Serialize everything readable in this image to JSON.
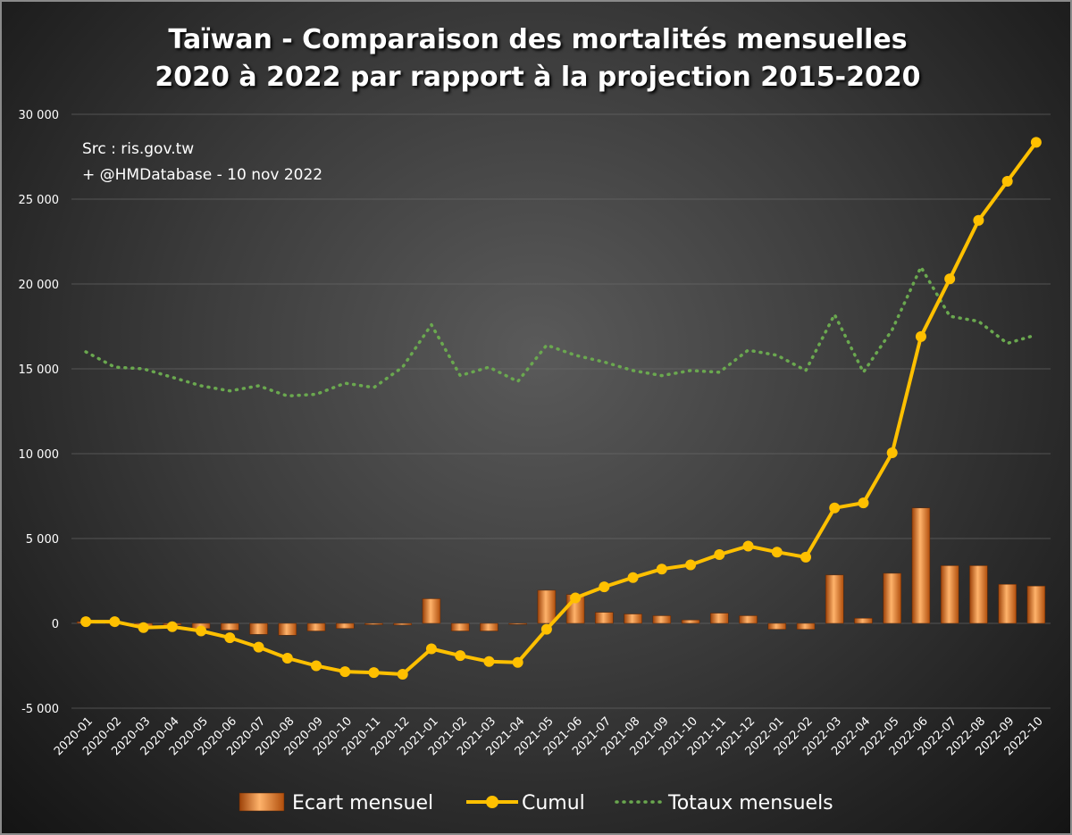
{
  "chart_data": {
    "type": "bar",
    "title_line1": "Taïwan - Comparaison des mortalités mensuelles",
    "title_line2": "2020 à 2022 par rapport à la projection 2015-2020",
    "annotations": [
      "Src : ris.gov.tw",
      "+ @HMDatabase - 10 nov 2022"
    ],
    "ylim": [
      -5000,
      30000
    ],
    "yticks": [
      -5000,
      0,
      5000,
      10000,
      15000,
      20000,
      25000,
      30000
    ],
    "ytick_labels": [
      "-5 000",
      "0",
      "5 000",
      "10 000",
      "15 000",
      "20 000",
      "25 000",
      "30 000"
    ],
    "grid": true,
    "legend_position": "bottom",
    "categories": [
      "2020-01",
      "2020-02",
      "2020-03",
      "2020-04",
      "2020-05",
      "2020-06",
      "2020-07",
      "2020-08",
      "2020-09",
      "2020-10",
      "2020-11",
      "2020-12",
      "2021-01",
      "2021-02",
      "2021-03",
      "2021-04",
      "2021-05",
      "2021-06",
      "2021-07",
      "2021-08",
      "2021-09",
      "2021-10",
      "2021-11",
      "2021-12",
      "2022-01",
      "2022-02",
      "2022-03",
      "2022-04",
      "2022-05",
      "2022-06",
      "2022-07",
      "2022-08",
      "2022-09",
      "2022-10"
    ],
    "series": [
      {
        "name": "Ecart mensuel",
        "type": "bar",
        "color": "#e8731a",
        "values": [
          100,
          30,
          -250,
          -100,
          -300,
          -400,
          -650,
          -700,
          -450,
          -300,
          -80,
          -100,
          1450,
          -450,
          -450,
          -60,
          1950,
          1700,
          650,
          550,
          450,
          200,
          600,
          450,
          -350,
          -350,
          2850,
          300,
          2950,
          6800,
          3400,
          3400,
          2300,
          2200
        ]
      },
      {
        "name": "Cumul",
        "type": "line",
        "color": "#ffc000",
        "values": [
          100,
          100,
          -250,
          -200,
          -450,
          -850,
          -1400,
          -2050,
          -2500,
          -2850,
          -2900,
          -3000,
          -1500,
          -1900,
          -2250,
          -2300,
          -350,
          1500,
          2150,
          2700,
          3200,
          3450,
          4050,
          4550,
          4200,
          3900,
          6800,
          7100,
          10050,
          16900,
          20300,
          23750,
          26050,
          28350
        ]
      },
      {
        "name": "Totaux mensuels",
        "type": "line-dotted",
        "color": "#6aa84f",
        "values": [
          16000,
          15100,
          15000,
          14500,
          14000,
          13700,
          14000,
          13400,
          13500,
          14150,
          13900,
          15100,
          17600,
          14600,
          15100,
          14250,
          16400,
          15800,
          15400,
          14900,
          14600,
          14900,
          14800,
          16100,
          15800,
          14900,
          18200,
          14800,
          17300,
          21000,
          18100,
          17800,
          16500,
          17000
        ]
      }
    ]
  }
}
